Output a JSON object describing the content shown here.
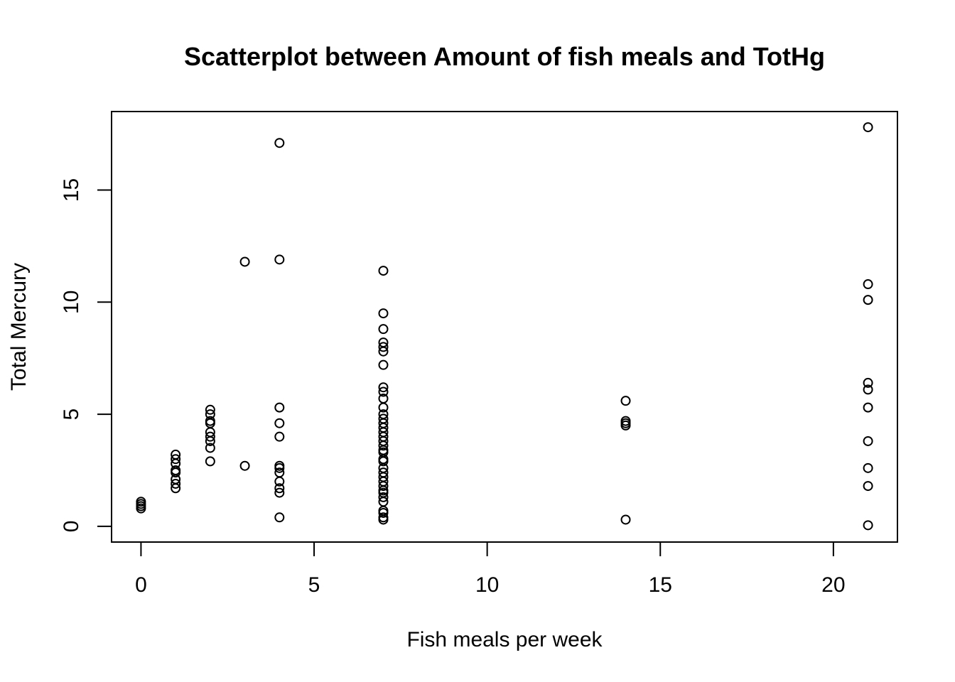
{
  "chart_data": {
    "type": "scatter",
    "title": "Scatterplot between Amount of fish meals and TotHg",
    "xlabel": "Fish meals per week",
    "ylabel": "Total Mercury",
    "xlim": [
      -0.85,
      21.85
    ],
    "ylim": [
      -0.7,
      18.5
    ],
    "xticks": [
      0,
      5,
      10,
      15,
      20
    ],
    "yticks": [
      0,
      5,
      10,
      15
    ],
    "grid": false,
    "legend": "none",
    "marker": "open-circle",
    "points": [
      {
        "x": 0,
        "y": 0.8
      },
      {
        "x": 0,
        "y": 0.9
      },
      {
        "x": 0,
        "y": 1.0
      },
      {
        "x": 0,
        "y": 1.1
      },
      {
        "x": 1,
        "y": 1.7
      },
      {
        "x": 1,
        "y": 1.9
      },
      {
        "x": 1,
        "y": 2.1
      },
      {
        "x": 1,
        "y": 2.4
      },
      {
        "x": 1,
        "y": 2.5
      },
      {
        "x": 1,
        "y": 2.8
      },
      {
        "x": 1,
        "y": 3.0
      },
      {
        "x": 1,
        "y": 3.2
      },
      {
        "x": 2,
        "y": 2.9
      },
      {
        "x": 2,
        "y": 3.5
      },
      {
        "x": 2,
        "y": 3.8
      },
      {
        "x": 2,
        "y": 4.0
      },
      {
        "x": 2,
        "y": 4.2
      },
      {
        "x": 2,
        "y": 4.6
      },
      {
        "x": 2,
        "y": 4.7
      },
      {
        "x": 2,
        "y": 5.0
      },
      {
        "x": 2,
        "y": 5.2
      },
      {
        "x": 3,
        "y": 2.7
      },
      {
        "x": 3,
        "y": 11.8
      },
      {
        "x": 4,
        "y": 0.4
      },
      {
        "x": 4,
        "y": 1.5
      },
      {
        "x": 4,
        "y": 1.7
      },
      {
        "x": 4,
        "y": 2.0
      },
      {
        "x": 4,
        "y": 2.4
      },
      {
        "x": 4,
        "y": 2.6
      },
      {
        "x": 4,
        "y": 2.7
      },
      {
        "x": 4,
        "y": 4.0
      },
      {
        "x": 4,
        "y": 4.6
      },
      {
        "x": 4,
        "y": 5.3
      },
      {
        "x": 4,
        "y": 11.9
      },
      {
        "x": 4,
        "y": 17.1
      },
      {
        "x": 7,
        "y": 0.3
      },
      {
        "x": 7,
        "y": 0.4
      },
      {
        "x": 7,
        "y": 0.6
      },
      {
        "x": 7,
        "y": 0.7
      },
      {
        "x": 7,
        "y": 1.1
      },
      {
        "x": 7,
        "y": 1.3
      },
      {
        "x": 7,
        "y": 1.5
      },
      {
        "x": 7,
        "y": 1.6
      },
      {
        "x": 7,
        "y": 1.8
      },
      {
        "x": 7,
        "y": 2.0
      },
      {
        "x": 7,
        "y": 2.2
      },
      {
        "x": 7,
        "y": 2.4
      },
      {
        "x": 7,
        "y": 2.6
      },
      {
        "x": 7,
        "y": 2.9
      },
      {
        "x": 7,
        "y": 3.0
      },
      {
        "x": 7,
        "y": 3.3
      },
      {
        "x": 7,
        "y": 3.4
      },
      {
        "x": 7,
        "y": 3.6
      },
      {
        "x": 7,
        "y": 3.8
      },
      {
        "x": 7,
        "y": 4.0
      },
      {
        "x": 7,
        "y": 4.2
      },
      {
        "x": 7,
        "y": 4.4
      },
      {
        "x": 7,
        "y": 4.6
      },
      {
        "x": 7,
        "y": 4.8
      },
      {
        "x": 7,
        "y": 5.0
      },
      {
        "x": 7,
        "y": 5.3
      },
      {
        "x": 7,
        "y": 5.7
      },
      {
        "x": 7,
        "y": 6.0
      },
      {
        "x": 7,
        "y": 6.2
      },
      {
        "x": 7,
        "y": 7.2
      },
      {
        "x": 7,
        "y": 7.8
      },
      {
        "x": 7,
        "y": 8.0
      },
      {
        "x": 7,
        "y": 8.2
      },
      {
        "x": 7,
        "y": 8.8
      },
      {
        "x": 7,
        "y": 9.5
      },
      {
        "x": 7,
        "y": 11.4
      },
      {
        "x": 14,
        "y": 0.3
      },
      {
        "x": 14,
        "y": 4.5
      },
      {
        "x": 14,
        "y": 4.6
      },
      {
        "x": 14,
        "y": 4.7
      },
      {
        "x": 14,
        "y": 5.6
      },
      {
        "x": 21,
        "y": 0.05
      },
      {
        "x": 21,
        "y": 1.8
      },
      {
        "x": 21,
        "y": 2.6
      },
      {
        "x": 21,
        "y": 3.8
      },
      {
        "x": 21,
        "y": 5.3
      },
      {
        "x": 21,
        "y": 6.1
      },
      {
        "x": 21,
        "y": 6.4
      },
      {
        "x": 21,
        "y": 10.1
      },
      {
        "x": 21,
        "y": 10.8
      },
      {
        "x": 21,
        "y": 17.8
      }
    ]
  }
}
